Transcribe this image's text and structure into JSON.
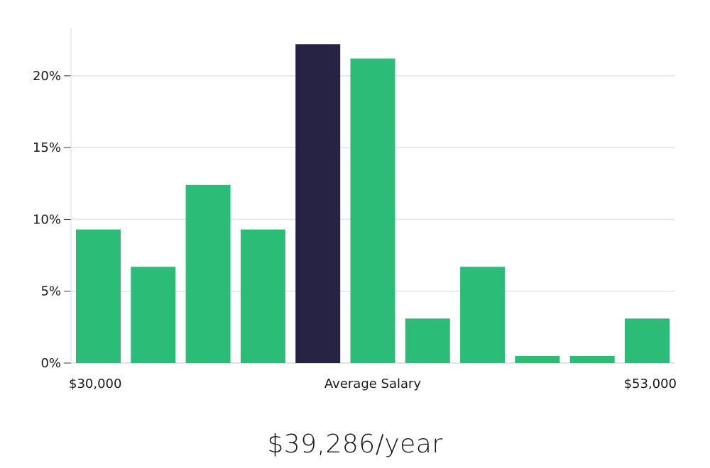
{
  "chart_data": {
    "type": "bar",
    "title": "",
    "xlabel": "Average Salary",
    "ylabel": "",
    "x_range_labels": {
      "min": "$30,000",
      "max": "$53,000"
    },
    "ylim": [
      0,
      23.3
    ],
    "yticks": [
      0,
      5,
      10,
      15,
      20
    ],
    "ytick_labels": [
      "0%",
      "5%",
      "10%",
      "15%",
      "20%"
    ],
    "values": [
      9.3,
      6.7,
      12.4,
      9.3,
      22.2,
      21.2,
      3.1,
      6.7,
      0.5,
      0.5,
      3.1
    ],
    "highlight_index": 4,
    "grid": true,
    "colors": {
      "bar": "#2bbd77",
      "highlight": "#272345",
      "grid": "#e3e3e3",
      "axis": "#d9d9d9"
    }
  },
  "average_salary": "$39,286/year"
}
